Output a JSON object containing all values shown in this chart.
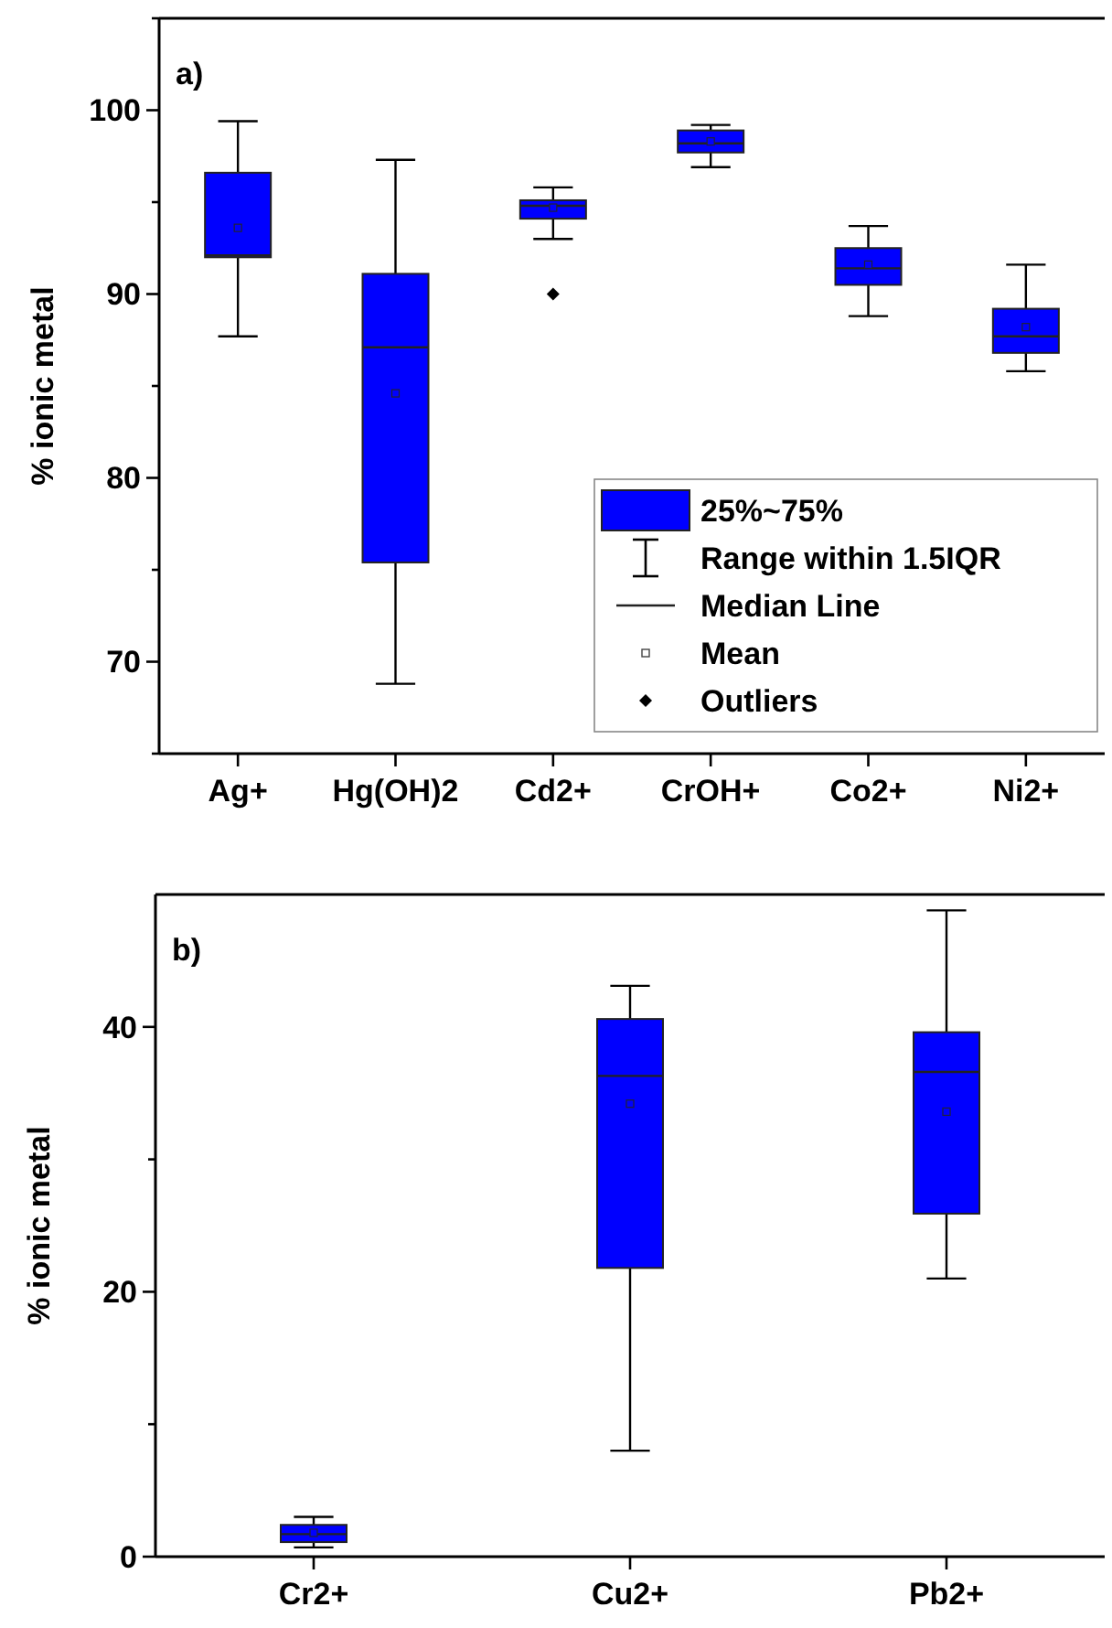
{
  "chart_data": [
    {
      "type": "box",
      "title": "a)",
      "ylabel": "% ionic metal",
      "color": "#0000ff",
      "categories": [
        "Ag+",
        "Hg(OH)2",
        "Cd2+",
        "CrOH+",
        "Co2+",
        "Ni2+"
      ],
      "boxes": [
        {
          "low": 87.7,
          "q1": 92.0,
          "median": 92.1,
          "q3": 96.6,
          "high": 99.4,
          "mean": 93.6
        },
        {
          "low": 68.8,
          "q1": 75.4,
          "median": 87.1,
          "q3": 91.1,
          "high": 97.3,
          "mean": 84.6
        },
        {
          "low": 93.0,
          "q1": 94.1,
          "median": 94.8,
          "q3": 95.1,
          "high": 95.8,
          "mean": 94.7,
          "outliers": [
            90.0
          ]
        },
        {
          "low": 96.9,
          "q1": 97.7,
          "median": 98.2,
          "q3": 98.9,
          "high": 99.2,
          "mean": 98.3
        },
        {
          "low": 88.8,
          "q1": 90.5,
          "median": 91.4,
          "q3": 92.5,
          "high": 93.7,
          "mean": 91.6
        },
        {
          "low": 85.8,
          "q1": 86.8,
          "median": 87.7,
          "q3": 89.2,
          "high": 91.6,
          "mean": 88.2
        }
      ],
      "ylim": [
        65,
        105
      ],
      "yticks": [
        {
          "value": 65,
          "label": null
        },
        70,
        {
          "value": 75,
          "label": null
        },
        80,
        {
          "value": 85,
          "label": null
        },
        90,
        {
          "value": 95,
          "label": null
        },
        100,
        {
          "value": 105,
          "label": null
        }
      ],
      "annotations": [
        "25%~75%",
        "Range within 1.5IQR",
        "Median Line",
        "Mean",
        "Outliers"
      ]
    },
    {
      "type": "box",
      "title": "b)",
      "ylabel": "% ionic metal",
      "color": "#0000ff",
      "categories": [
        "Cr2+",
        "Cu2+",
        "Pb2+"
      ],
      "boxes": [
        {
          "low": 0.7,
          "q1": 1.1,
          "median": 1.7,
          "q3": 2.4,
          "high": 3.0,
          "mean": 1.8
        },
        {
          "low": 8.0,
          "q1": 21.8,
          "median": 36.3,
          "q3": 40.6,
          "high": 43.1,
          "mean": 34.2
        },
        {
          "low": 21.0,
          "q1": 25.9,
          "median": 36.6,
          "q3": 39.6,
          "high": 48.8,
          "mean": 33.6
        }
      ],
      "ylim": [
        0,
        50
      ],
      "yticks": [
        0,
        {
          "value": 10,
          "label": null
        },
        20,
        {
          "value": 30,
          "label": null
        },
        40
      ]
    }
  ]
}
